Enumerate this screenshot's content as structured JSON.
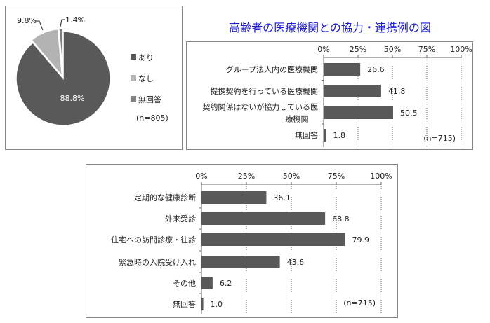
{
  "title": "高齢者の医療機関との協力・連携例の図",
  "colors": {
    "dark": "#595959",
    "light": "#b3b3b3",
    "mid": "#808080",
    "grid": "#666666",
    "title": "#1a1ad0"
  },
  "chart_data": [
    {
      "type": "pie",
      "labels": [
        "あり",
        "なし",
        "無回答"
      ],
      "values": [
        88.8,
        9.8,
        1.4
      ],
      "data_labels": [
        "88.8%",
        "9.8%",
        "1.4%"
      ],
      "n_label": "(n=805)",
      "legend": "right"
    },
    {
      "type": "bar",
      "orientation": "horizontal",
      "categories": [
        "グループ法人内の医療機関",
        "提携契約を行っている医療機関",
        "契約関係はないが協力している医療機関",
        "無回答"
      ],
      "category_lines": [
        [
          "グループ法人内の医療機関"
        ],
        [
          "提携契約を行っている医療機関"
        ],
        [
          "契約関係はないが協力している医",
          "療機関"
        ],
        [
          "無回答"
        ]
      ],
      "values": [
        26.6,
        41.8,
        50.5,
        1.8
      ],
      "data_labels": [
        "26.6",
        "41.8",
        "50.5",
        "1.8"
      ],
      "xlim": [
        0,
        100
      ],
      "xticks": [
        "0%",
        "25%",
        "50%",
        "75%",
        "100%"
      ],
      "n_label": "(n=715)",
      "grid": true
    },
    {
      "type": "bar",
      "orientation": "horizontal",
      "categories": [
        "定期的な健康診断",
        "外来受診",
        "住宅への訪問診療・往診",
        "緊急時の入院受け入れ",
        "その他",
        "無回答"
      ],
      "category_lines": [
        [
          "定期的な健康診断"
        ],
        [
          "外来受診"
        ],
        [
          "住宅への訪問診療・往診"
        ],
        [
          "緊急時の入院受け入れ"
        ],
        [
          "その他"
        ],
        [
          "無回答"
        ]
      ],
      "values": [
        36.1,
        68.8,
        79.9,
        43.6,
        6.2,
        1.0
      ],
      "data_labels": [
        "36.1",
        "68.8",
        "79.9",
        "43.6",
        "6.2",
        "1.0"
      ],
      "xlim": [
        0,
        100
      ],
      "xticks": [
        "0%",
        "25%",
        "50%",
        "75%",
        "100%"
      ],
      "n_label": "(n=715)",
      "grid": true
    }
  ]
}
